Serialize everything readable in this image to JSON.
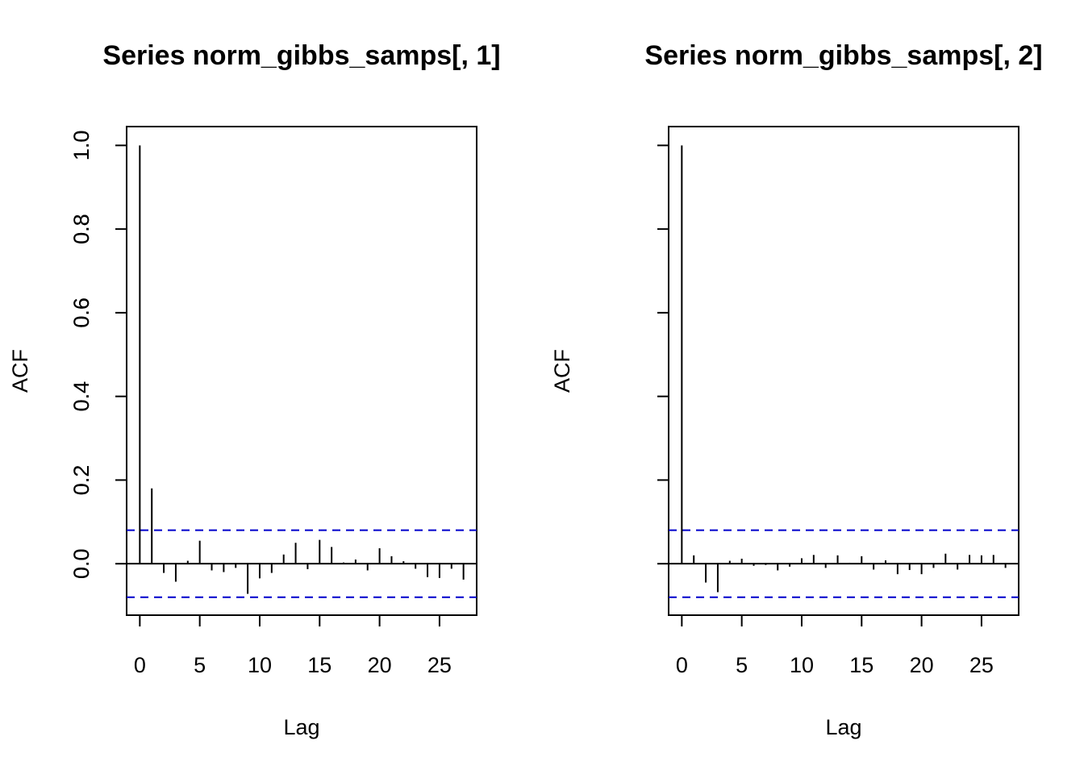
{
  "chart_data": [
    {
      "type": "bar",
      "title": "Series  norm_gibbs_samps[, 1]",
      "xlabel": "Lag",
      "ylabel": "ACF",
      "xlim": [
        -1.1,
        28.1
      ],
      "ylim": [
        -0.123,
        1.045
      ],
      "xticks": [
        0,
        5,
        10,
        15,
        20,
        25
      ],
      "yticks": [
        0.0,
        0.2,
        0.4,
        0.6,
        0.8,
        1.0
      ],
      "ytick_labels": [
        "0.0",
        "0.2",
        "0.4",
        "0.6",
        "0.8",
        "1.0"
      ],
      "confidence_bound": 0.08,
      "confidence_color": "#0000cc",
      "x": [
        0,
        1,
        2,
        3,
        4,
        5,
        6,
        7,
        8,
        9,
        10,
        11,
        12,
        13,
        14,
        15,
        16,
        17,
        18,
        19,
        20,
        21,
        22,
        23,
        24,
        25,
        26,
        27
      ],
      "values": [
        1.0,
        0.18,
        -0.022,
        -0.043,
        0.007,
        0.055,
        -0.016,
        -0.02,
        -0.01,
        -0.072,
        -0.035,
        -0.022,
        0.022,
        0.05,
        -0.013,
        0.057,
        0.04,
        0.003,
        0.01,
        -0.016,
        0.037,
        0.018,
        0.006,
        -0.012,
        -0.032,
        -0.034,
        -0.012,
        -0.038
      ]
    },
    {
      "type": "bar",
      "title": "Series  norm_gibbs_samps[, 2]",
      "xlabel": "Lag",
      "ylabel": "ACF",
      "xlim": [
        -1.1,
        28.1
      ],
      "ylim": [
        -0.123,
        1.045
      ],
      "xticks": [
        0,
        5,
        10,
        15,
        20,
        25
      ],
      "yticks": [
        0.0,
        0.2,
        0.4,
        0.6,
        0.8,
        1.0
      ],
      "ytick_labels": [
        "0.0",
        "0.2",
        "0.4",
        "0.6",
        "0.8",
        "1.0"
      ],
      "confidence_bound": 0.08,
      "confidence_color": "#0000cc",
      "x": [
        0,
        1,
        2,
        3,
        4,
        5,
        6,
        7,
        8,
        9,
        10,
        11,
        12,
        13,
        14,
        15,
        16,
        17,
        18,
        19,
        20,
        21,
        22,
        23,
        24,
        25,
        26,
        27
      ],
      "values": [
        1.0,
        0.02,
        -0.045,
        -0.068,
        0.007,
        0.012,
        -0.005,
        -0.003,
        -0.016,
        -0.007,
        0.013,
        0.021,
        -0.01,
        0.02,
        0.002,
        0.018,
        -0.014,
        0.008,
        -0.025,
        -0.015,
        -0.025,
        -0.01,
        0.024,
        -0.014,
        0.021,
        0.02,
        0.021,
        -0.01
      ]
    }
  ]
}
